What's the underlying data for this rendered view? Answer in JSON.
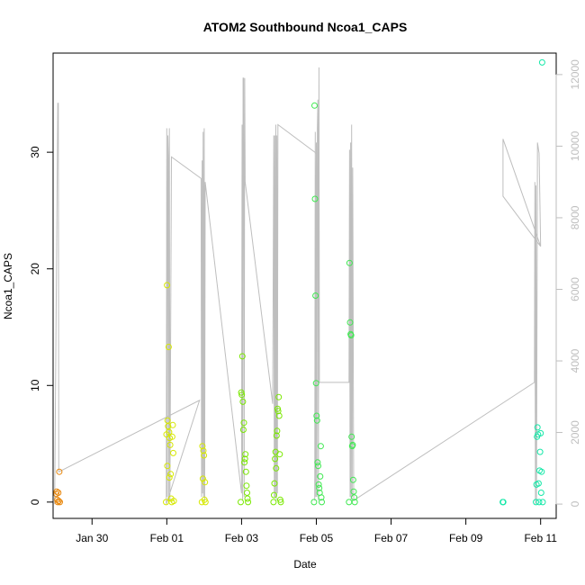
{
  "chart_data": {
    "type": "scatter",
    "title": "ATOM2 Southbound Ncoa1_CAPS",
    "xlabel": "Date",
    "ylabel": "Ncoa1_CAPS",
    "x_unit": "date",
    "xlim": [
      "2023-01-28T23:00",
      "2023-02-11T10:00"
    ],
    "ylim": [
      -1.4,
      38.5
    ],
    "y2lim": [
      -400,
      12600
    ],
    "x_ticks": [
      {
        "label": "Jan 30",
        "x": "2023-01-30T00:00"
      },
      {
        "label": "Feb 01",
        "x": "2023-02-01T00:00"
      },
      {
        "label": "Feb 03",
        "x": "2023-02-03T00:00"
      },
      {
        "label": "Feb 05",
        "x": "2023-02-05T00:00"
      },
      {
        "label": "Feb 07",
        "x": "2023-02-07T00:00"
      },
      {
        "label": "Feb 09",
        "x": "2023-02-09T00:00"
      },
      {
        "label": "Feb 11",
        "x": "2023-02-11T00:00"
      }
    ],
    "y_ticks": [
      0,
      10,
      20,
      30
    ],
    "y2_ticks": [
      0,
      2000,
      4000,
      6000,
      8000,
      10000,
      12000
    ],
    "grid": false,
    "series": [
      {
        "color": "#E8860A",
        "points": [
          [
            "2023-01-29T01:00",
            0.7
          ],
          [
            "2023-01-29T01:20",
            0.9
          ],
          [
            "2023-01-29T01:40",
            0.2
          ],
          [
            "2023-01-29T02:00",
            0.0
          ],
          [
            "2023-01-29T02:20",
            0.8
          ],
          [
            "2023-01-29T02:40",
            0.1
          ],
          [
            "2023-01-29T03:00",
            2.6
          ],
          [
            "2023-01-29T03:20",
            0.0
          ]
        ]
      },
      {
        "color": "#D6E800",
        "points": [
          [
            "2023-01-31T23:30",
            0.0
          ],
          [
            "2023-01-31T23:50",
            5.8
          ],
          [
            "2023-02-01T00:10",
            18.6
          ],
          [
            "2023-02-01T00:30",
            7.0
          ],
          [
            "2023-02-01T00:50",
            6.5
          ],
          [
            "2023-02-01T01:10",
            13.3
          ],
          [
            "2023-02-01T01:30",
            6.0
          ],
          [
            "2023-02-01T01:50",
            5.5
          ],
          [
            "2023-02-01T02:10",
            4.9
          ],
          [
            "2023-02-01T02:30",
            2.4
          ],
          [
            "2023-02-01T02:50",
            0.3
          ],
          [
            "2023-02-01T03:10",
            0.0
          ],
          [
            "2023-02-01T03:30",
            5.6
          ],
          [
            "2023-02-01T03:50",
            6.6
          ],
          [
            "2023-02-01T04:10",
            4.2
          ],
          [
            "2023-02-01T04:30",
            0.1
          ],
          [
            "2023-02-01T00:20",
            3.1
          ],
          [
            "2023-02-01T01:40",
            2.1
          ],
          [
            "2023-02-01T22:30",
            0.0
          ],
          [
            "2023-02-01T22:50",
            4.8
          ],
          [
            "2023-02-01T23:10",
            2.0
          ],
          [
            "2023-02-01T23:30",
            4.4
          ],
          [
            "2023-02-01T23:50",
            4.0
          ],
          [
            "2023-02-02T00:10",
            0.2
          ],
          [
            "2023-02-02T00:30",
            1.7
          ],
          [
            "2023-02-02T00:50",
            0.0
          ]
        ]
      },
      {
        "color": "#7AE800",
        "points": [
          [
            "2023-02-02T23:30",
            0.0
          ],
          [
            "2023-02-02T23:50",
            9.4
          ],
          [
            "2023-02-03T00:10",
            9.2
          ],
          [
            "2023-02-03T00:30",
            12.5
          ],
          [
            "2023-02-03T00:50",
            8.6
          ],
          [
            "2023-02-03T01:10",
            6.2
          ],
          [
            "2023-02-03T01:30",
            6.8
          ],
          [
            "2023-02-03T01:50",
            3.4
          ],
          [
            "2023-02-03T02:10",
            3.7
          ],
          [
            "2023-02-03T02:30",
            4.1
          ],
          [
            "2023-02-03T02:50",
            2.6
          ],
          [
            "2023-02-03T03:10",
            1.4
          ],
          [
            "2023-02-03T03:30",
            0.8
          ],
          [
            "2023-02-03T03:50",
            0.3
          ],
          [
            "2023-02-03T04:10",
            0.0
          ],
          [
            "2023-02-03T20:30",
            0.0
          ],
          [
            "2023-02-03T20:50",
            0.6
          ],
          [
            "2023-02-03T21:10",
            1.6
          ],
          [
            "2023-02-03T21:30",
            3.7
          ],
          [
            "2023-02-03T21:50",
            4.3
          ],
          [
            "2023-02-03T22:10",
            2.9
          ],
          [
            "2023-02-03T22:30",
            5.7
          ],
          [
            "2023-02-03T22:50",
            6.1
          ],
          [
            "2023-02-03T23:10",
            8.0
          ],
          [
            "2023-02-03T23:30",
            7.8
          ],
          [
            "2023-02-03T23:50",
            9.0
          ],
          [
            "2023-02-04T00:10",
            7.4
          ],
          [
            "2023-02-04T00:30",
            4.1
          ],
          [
            "2023-02-04T00:50",
            0.2
          ],
          [
            "2023-02-04T01:10",
            0.0
          ]
        ]
      },
      {
        "color": "#3EE850",
        "points": [
          [
            "2023-02-04T22:30",
            0.0
          ],
          [
            "2023-02-04T22:50",
            34.0
          ],
          [
            "2023-02-04T23:10",
            26.0
          ],
          [
            "2023-02-04T23:30",
            17.7
          ],
          [
            "2023-02-04T23:50",
            10.2
          ],
          [
            "2023-02-05T00:10",
            7.4
          ],
          [
            "2023-02-05T00:30",
            7.0
          ],
          [
            "2023-02-05T00:50",
            3.4
          ],
          [
            "2023-02-05T01:10",
            3.1
          ],
          [
            "2023-02-05T01:30",
            1.5
          ],
          [
            "2023-02-05T01:50",
            1.2
          ],
          [
            "2023-02-05T02:10",
            0.8
          ],
          [
            "2023-02-05T02:30",
            2.2
          ],
          [
            "2023-02-05T02:50",
            4.8
          ],
          [
            "2023-02-05T03:10",
            0.4
          ],
          [
            "2023-02-05T03:30",
            0.0
          ],
          [
            "2023-02-05T21:00",
            0.0
          ],
          [
            "2023-02-05T21:20",
            20.5
          ],
          [
            "2023-02-05T21:40",
            15.4
          ],
          [
            "2023-02-05T22:00",
            14.4
          ],
          [
            "2023-02-05T22:20",
            14.3
          ],
          [
            "2023-02-05T22:40",
            5.6
          ],
          [
            "2023-02-05T23:00",
            4.8
          ],
          [
            "2023-02-05T23:20",
            4.9
          ],
          [
            "2023-02-05T23:40",
            1.9
          ],
          [
            "2023-02-06T00:00",
            0.9
          ],
          [
            "2023-02-06T00:20",
            0.4
          ],
          [
            "2023-02-06T00:40",
            0.0
          ]
        ]
      },
      {
        "color": "#14E8A8",
        "points": [
          [
            "2023-02-09T23:40",
            0.0
          ],
          [
            "2023-02-10T00:00",
            0.0
          ],
          [
            "2023-02-10T21:00",
            0.0
          ],
          [
            "2023-02-10T21:20",
            1.5
          ],
          [
            "2023-02-10T21:40",
            5.6
          ],
          [
            "2023-02-10T22:00",
            6.4
          ],
          [
            "2023-02-10T22:20",
            5.8
          ],
          [
            "2023-02-10T22:40",
            1.6
          ],
          [
            "2023-02-10T23:00",
            0.0
          ],
          [
            "2023-02-10T23:20",
            2.7
          ],
          [
            "2023-02-10T23:40",
            4.3
          ],
          [
            "2023-02-11T00:00",
            5.9
          ],
          [
            "2023-02-11T00:20",
            0.8
          ],
          [
            "2023-02-11T00:40",
            2.6
          ],
          [
            "2023-02-11T01:00",
            37.7
          ],
          [
            "2023-02-11T01:20",
            0.0
          ]
        ]
      }
    ],
    "secondary_series": {
      "axis": "right",
      "color": "#bebebe",
      "type": "line",
      "points": [
        [
          "2023-01-29T00:00",
          0
        ],
        [
          "2023-01-29T02:00",
          11200
        ],
        [
          "2023-01-29T02:20",
          11200
        ],
        [
          "2023-01-29T02:40",
          900
        ],
        [
          "2023-02-01T21:00",
          2900
        ],
        [
          "2023-01-31T23:40",
          0
        ],
        [
          "2023-02-01T00:00",
          10500
        ],
        [
          "2023-02-01T00:20",
          200
        ],
        [
          "2023-02-01T00:40",
          10300
        ],
        [
          "2023-02-01T01:00",
          9700
        ],
        [
          "2023-02-01T01:20",
          100
        ],
        [
          "2023-02-01T01:40",
          10500
        ],
        [
          "2023-02-01T02:00",
          100
        ],
        [
          "2023-02-01T03:00",
          9700
        ],
        [
          "2023-02-01T22:00",
          9100
        ],
        [
          "2023-02-01T22:20",
          200
        ],
        [
          "2023-02-01T22:40",
          9600
        ],
        [
          "2023-02-01T23:00",
          300
        ],
        [
          "2023-02-01T23:20",
          10400
        ],
        [
          "2023-02-01T23:40",
          200
        ],
        [
          "2023-02-02T00:00",
          10500
        ],
        [
          "2023-02-02T00:20",
          100
        ],
        [
          "2023-02-02T00:40",
          9000
        ],
        [
          "2023-02-03T00:00",
          300
        ],
        [
          "2023-02-03T00:20",
          10600
        ],
        [
          "2023-02-03T00:40",
          100
        ],
        [
          "2023-02-03T01:00",
          11900
        ],
        [
          "2023-02-03T01:20",
          11900
        ],
        [
          "2023-02-03T01:40",
          200
        ],
        [
          "2023-02-03T02:00",
          11900
        ],
        [
          "2023-02-03T02:20",
          9000
        ],
        [
          "2023-02-03T20:00",
          2800
        ],
        [
          "2023-02-03T20:40",
          10300
        ],
        [
          "2023-02-03T21:00",
          200
        ],
        [
          "2023-02-03T21:20",
          10300
        ],
        [
          "2023-02-03T21:40",
          200
        ],
        [
          "2023-02-03T22:00",
          10600
        ],
        [
          "2023-02-03T22:20",
          100
        ],
        [
          "2023-02-03T22:40",
          10300
        ],
        [
          "2023-02-03T23:00",
          300
        ],
        [
          "2023-02-03T23:20",
          10600
        ],
        [
          "2023-02-05T00:00",
          9800
        ],
        [
          "2023-02-04T23:00",
          100
        ],
        [
          "2023-02-04T23:20",
          10400
        ],
        [
          "2023-02-04T23:40",
          200
        ],
        [
          "2023-02-05T00:00",
          10100
        ],
        [
          "2023-02-05T00:20",
          200
        ],
        [
          "2023-02-05T00:40",
          10500
        ],
        [
          "2023-02-05T01:00",
          11300
        ],
        [
          "2023-02-05T01:20",
          100
        ],
        [
          "2023-02-05T01:40",
          12200
        ],
        [
          "2023-02-05T02:00",
          3400
        ],
        [
          "2023-02-05T21:00",
          3400
        ],
        [
          "2023-02-05T21:20",
          9900
        ],
        [
          "2023-02-05T21:40",
          200
        ],
        [
          "2023-02-05T22:00",
          10100
        ],
        [
          "2023-02-05T22:20",
          100
        ],
        [
          "2023-02-05T22:40",
          10600
        ],
        [
          "2023-02-05T23:00",
          200
        ],
        [
          "2023-02-05T23:20",
          9400
        ],
        [
          "2023-02-06T00:00",
          100
        ],
        [
          "2023-02-10T20:00",
          3400
        ],
        [
          "2023-02-10T20:20",
          9000
        ],
        [
          "2023-02-10T20:40",
          0
        ],
        [
          "2023-02-10T21:00",
          8900
        ],
        [
          "2023-02-10T21:20",
          100
        ],
        [
          "2023-02-10T22:00",
          10100
        ],
        [
          "2023-02-10T23:00",
          9800
        ],
        [
          "2023-02-11T00:00",
          7200
        ],
        [
          "2023-02-09T23:50",
          10200
        ],
        [
          "2023-02-09T23:50",
          8600
        ],
        [
          "2023-02-11T00:00",
          7200
        ]
      ]
    }
  }
}
